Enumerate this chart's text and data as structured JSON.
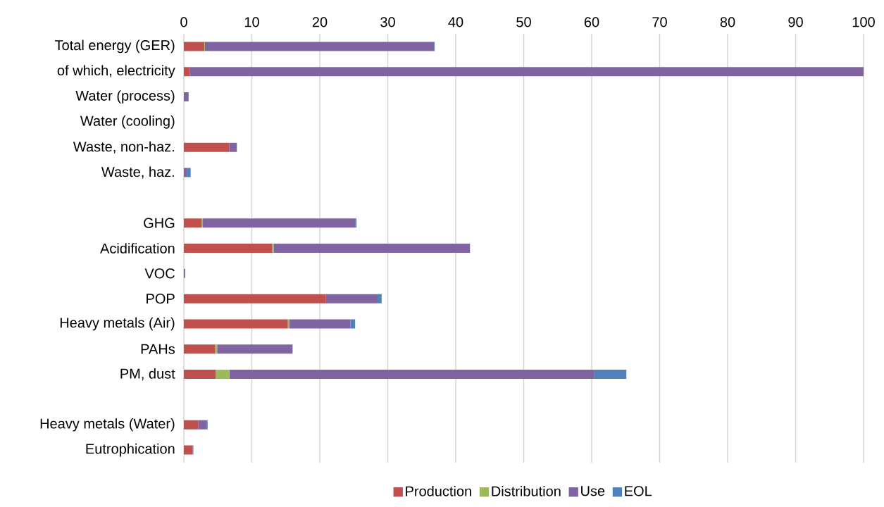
{
  "chart_data": {
    "type": "bar",
    "orientation": "horizontal",
    "stacked": true,
    "categories": [
      "Total energy (GER)",
      "of which, electricity",
      "Water (process)",
      "Water (cooling)",
      "Waste, non-haz.",
      "Waste, haz.",
      null,
      "GHG",
      "Acidification",
      "VOC",
      "POP",
      "Heavy metals (Air)",
      "PAHs",
      "PM, dust",
      null,
      "Heavy metals (Water)",
      "Eutrophication"
    ],
    "series": [
      {
        "name": "Production",
        "color": "#c0504d",
        "values": [
          3.0,
          0.9,
          0,
          0,
          6.7,
          0,
          0,
          2.6,
          13.0,
          0,
          20.9,
          15.3,
          4.6,
          4.7,
          0,
          2.1,
          1.3
        ]
      },
      {
        "name": "Distribution",
        "color": "#9bbb59",
        "values": [
          0.1,
          0,
          0,
          0,
          0,
          0,
          0,
          0.2,
          0.2,
          0,
          0,
          0.2,
          0.3,
          2.0,
          0,
          0,
          0
        ]
      },
      {
        "name": "Use",
        "color": "#8064a2",
        "values": [
          33.7,
          99.1,
          0.7,
          0,
          1.1,
          0.5,
          0,
          22.4,
          28.9,
          0.2,
          7.6,
          9.0,
          11.1,
          53.7,
          0,
          1.2,
          0
        ]
      },
      {
        "name": "EOL",
        "color": "#4f81bd",
        "values": [
          0.1,
          0,
          0,
          0,
          0,
          0.5,
          0,
          0.2,
          0,
          0,
          0.6,
          0.7,
          0,
          4.7,
          0,
          0.2,
          0.1
        ]
      }
    ],
    "xlim": [
      0,
      100
    ],
    "xticks": [
      0,
      10,
      20,
      30,
      40,
      50,
      60,
      70,
      80,
      90,
      100
    ],
    "grid": "x",
    "legend": "bottom"
  }
}
